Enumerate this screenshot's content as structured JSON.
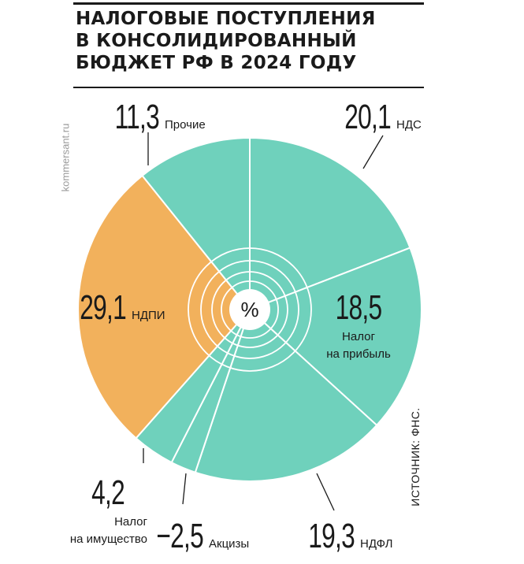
{
  "title_lines": [
    "НАЛОГОВЫЕ ПОСТУПЛЕНИЯ",
    "В КОНСОЛИДИРОВАННЫЙ",
    "БЮДЖЕТ РФ В 2024 ГОДУ"
  ],
  "watermark": "kommersant.ru",
  "source": "ИСТОЧНИК: ФНС.",
  "center_symbol": "%",
  "colors": {
    "teal": "#6fd1bc",
    "orange": "#f2b15c",
    "text": "#1a1a1a"
  },
  "chart_data": {
    "type": "pie",
    "unit": "%",
    "slices": [
      {
        "label": "НДС",
        "value": 20.1,
        "display": "20,1",
        "color": "#6fd1bc"
      },
      {
        "label": "Налог на прибыль",
        "value": 18.5,
        "display": "18,5",
        "color": "#6fd1bc"
      },
      {
        "label": "НДФЛ",
        "value": 19.3,
        "display": "19,3",
        "color": "#6fd1bc"
      },
      {
        "label": "Акцизы",
        "value": 2.5,
        "display": "2,5",
        "color": "#6fd1bc"
      },
      {
        "label": "Налог на имущество",
        "value": 4.2,
        "display": "4,2",
        "color": "#6fd1bc"
      },
      {
        "label": "НДПИ",
        "value": 29.1,
        "display": "29,1",
        "color": "#f2b15c"
      },
      {
        "label": "Прочие",
        "value": 11.3,
        "display": "11,3",
        "color": "#6fd1bc"
      }
    ]
  }
}
